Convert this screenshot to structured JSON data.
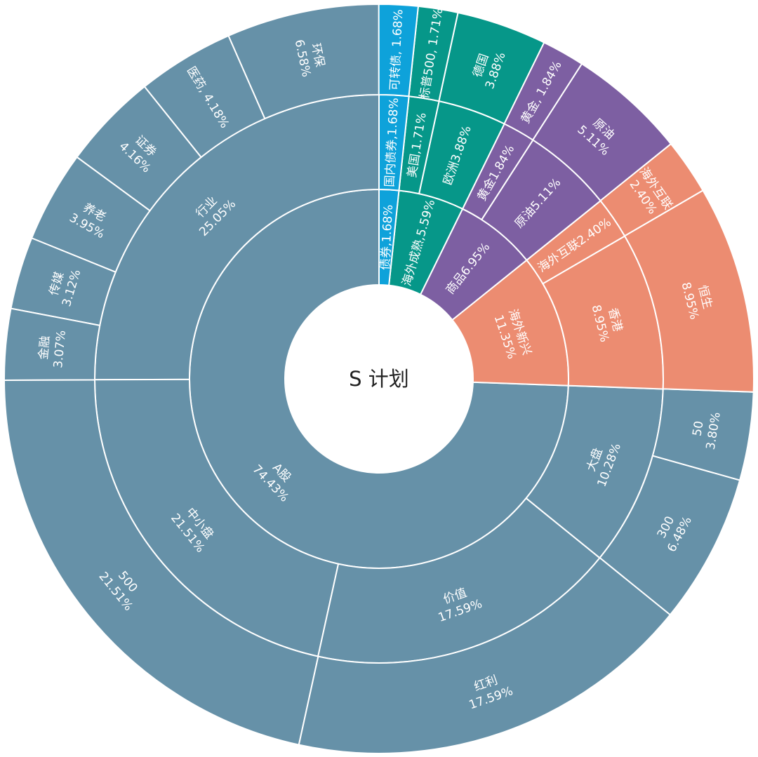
{
  "chart_data": {
    "type": "sunburst",
    "center_label": "S 计划",
    "colors": {
      "A股": "#6691a8",
      "海外新兴": "#ec8c71",
      "商品": "#7d5fa2",
      "海外成熟": "#069789",
      "债券": "#0ea2da",
      "separator": "#ffffff"
    },
    "inner": [
      {
        "name": "A股",
        "value": 74.43,
        "label": "A股\n74.43%",
        "radial": false
      },
      {
        "name": "海外新兴",
        "value": 11.35,
        "label": "海外新兴\n11.35%",
        "radial": false
      },
      {
        "name": "商品",
        "value": 6.95,
        "label": "商品6.95%",
        "radial": true
      },
      {
        "name": "海外成熟",
        "value": 5.59,
        "label": "海外成熟,5.59%",
        "radial": true
      },
      {
        "name": "债券",
        "value": 1.68,
        "label": "债券,1.68%",
        "radial": true
      }
    ],
    "middle": [
      {
        "name": "行业",
        "parent": "A股",
        "value": 25.05,
        "label": "行业\n25.05%",
        "radial": false
      },
      {
        "name": "中小盘",
        "parent": "A股",
        "value": 21.51,
        "label": "中小盘\n21.51%",
        "radial": false
      },
      {
        "name": "价值",
        "parent": "A股",
        "value": 17.59,
        "label": "价值\n17.59%",
        "radial": false
      },
      {
        "name": "大盘",
        "parent": "A股",
        "value": 10.28,
        "label": "大盘\n10.28%",
        "radial": false
      },
      {
        "name": "香港",
        "parent": "海外新兴",
        "value": 8.95,
        "label": "香港\n8.95%",
        "radial": false
      },
      {
        "name": "海外互联",
        "parent": "海外新兴",
        "value": 2.4,
        "label": "海外互联2.40%",
        "radial": true
      },
      {
        "name": "原油",
        "parent": "商品",
        "value": 5.11,
        "label": "原油5.11%",
        "radial": true
      },
      {
        "name": "黄金",
        "parent": "商品",
        "value": 1.84,
        "label": "黄金1.84%",
        "radial": true
      },
      {
        "name": "欧洲",
        "parent": "海外成熟",
        "value": 3.88,
        "label": "欧洲3.88%",
        "radial": true
      },
      {
        "name": "美国",
        "parent": "海外成熟",
        "value": 1.71,
        "label": "美国,1.71%",
        "radial": true
      },
      {
        "name": "国内债券",
        "parent": "债券",
        "value": 1.68,
        "label": "国内债券,1.68%",
        "radial": true
      }
    ],
    "outer": [
      {
        "name": "环保",
        "parent": "行业",
        "value": 6.58,
        "label": "环保\n6.58%",
        "radial": true
      },
      {
        "name": "医药",
        "parent": "行业",
        "value": 4.18,
        "label": "医药, 4.18%",
        "radial": true
      },
      {
        "name": "证券",
        "parent": "行业",
        "value": 4.16,
        "label": "证券\n4.16%",
        "radial": true
      },
      {
        "name": "养老",
        "parent": "行业",
        "value": 3.95,
        "label": "养老\n3.95%",
        "radial": true
      },
      {
        "name": "传媒",
        "parent": "行业",
        "value": 3.12,
        "label": "传媒\n3.12%",
        "radial": false
      },
      {
        "name": "金融",
        "parent": "行业",
        "value": 3.07,
        "label": "金融\n3.07%",
        "radial": false
      },
      {
        "name": "500",
        "parent": "中小盘",
        "value": 21.51,
        "label": "500\n21.51%",
        "radial": false
      },
      {
        "name": "红利",
        "parent": "价值",
        "value": 17.59,
        "label": "红利\n17.59%",
        "radial": false
      },
      {
        "name": "300",
        "parent": "大盘",
        "value": 6.48,
        "label": "300\n6.48%",
        "radial": false
      },
      {
        "name": "50",
        "parent": "大盘",
        "value": 3.8,
        "label": "50\n3.80%",
        "radial": false
      },
      {
        "name": "恒生",
        "parent": "香港",
        "value": 8.95,
        "label": "恒生\n8.95%",
        "radial": false
      },
      {
        "name": "海外互联",
        "parent": "海外互联",
        "value": 2.4,
        "label": "海外互联\n2.40%",
        "radial": false
      },
      {
        "name": "原油",
        "parent": "原油",
        "value": 5.11,
        "label": "原油\n5.11%",
        "radial": false
      },
      {
        "name": "黄金",
        "parent": "黄金",
        "value": 1.84,
        "label": "黄金, 1.84%",
        "radial": true
      },
      {
        "name": "德国",
        "parent": "欧洲",
        "value": 3.88,
        "label": "德国\n3.88%",
        "radial": true
      },
      {
        "name": "标普500",
        "parent": "美国",
        "value": 1.71,
        "label": "标普500, 1.71%",
        "radial": true
      },
      {
        "name": "可转债",
        "parent": "国内债券",
        "value": 1.68,
        "label": "可转债, 1.68%",
        "radial": true
      }
    ]
  }
}
